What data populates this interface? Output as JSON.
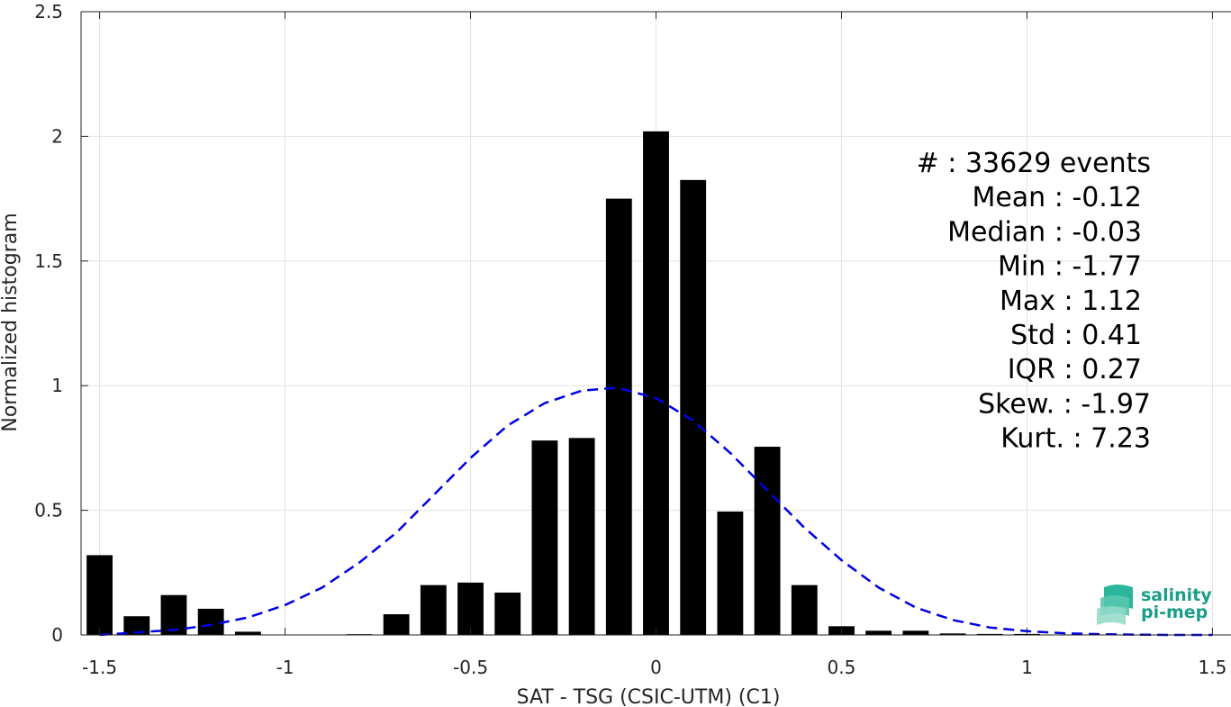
{
  "chart_data": {
    "type": "bar",
    "xlabel": "SAT - TSG (CSIC-UTM) (C1)",
    "ylabel": "Normalized histogram",
    "xlim": [
      -1.55,
      1.55
    ],
    "ylim": [
      0,
      2.5
    ],
    "x_ticks": [
      -1.5,
      -1,
      -0.5,
      0,
      0.5,
      1,
      1.5
    ],
    "x_tick_labels": [
      "-1.5",
      "-1",
      "-0.5",
      "0",
      "0.5",
      "1",
      "1.5"
    ],
    "y_ticks": [
      0,
      0.5,
      1,
      1.5,
      2,
      2.5
    ],
    "y_tick_labels": [
      "0",
      "0.5",
      "1",
      "1.5",
      "2",
      "2.5"
    ],
    "grid": true,
    "bar_color": "#000000",
    "bar_width": 0.07,
    "bars": {
      "x": [
        -1.5,
        -1.4,
        -1.3,
        -1.2,
        -1.1,
        -1.0,
        -0.9,
        -0.8,
        -0.7,
        -0.6,
        -0.5,
        -0.4,
        -0.3,
        -0.2,
        -0.1,
        0.0,
        0.1,
        0.2,
        0.3,
        0.4,
        0.5,
        0.6,
        0.7,
        0.8,
        0.9,
        1.0,
        1.1,
        1.2,
        1.3,
        1.4,
        1.5
      ],
      "y": [
        0.32,
        0.075,
        0.16,
        0.105,
        0.013,
        0.0,
        0.0,
        0.003,
        0.083,
        0.2,
        0.21,
        0.17,
        0.78,
        0.79,
        1.75,
        2.02,
        1.825,
        0.495,
        0.755,
        0.2,
        0.035,
        0.017,
        0.017,
        0.006,
        0.004,
        0.004,
        0.0,
        0.0,
        0.0,
        0.0,
        0.0
      ]
    },
    "fit_curve": {
      "color": "#0000e6",
      "style": "dashed",
      "x": [
        -1.5,
        -1.4,
        -1.3,
        -1.2,
        -1.1,
        -1.0,
        -0.9,
        -0.8,
        -0.7,
        -0.6,
        -0.5,
        -0.4,
        -0.3,
        -0.2,
        -0.12,
        -0.1,
        0.0,
        0.1,
        0.2,
        0.3,
        0.4,
        0.5,
        0.6,
        0.7,
        0.8,
        0.9,
        1.0,
        1.1,
        1.2,
        1.3,
        1.4,
        1.5
      ],
      "y": [
        0.0,
        0.01,
        0.02,
        0.04,
        0.07,
        0.12,
        0.19,
        0.29,
        0.41,
        0.56,
        0.71,
        0.84,
        0.93,
        0.98,
        0.99,
        0.99,
        0.95,
        0.86,
        0.73,
        0.58,
        0.43,
        0.3,
        0.19,
        0.11,
        0.06,
        0.03,
        0.015,
        0.007,
        0.003,
        0.001,
        0.0,
        0.0
      ]
    },
    "stats": [
      {
        "label": "#",
        "sep": " : ",
        "value": "33629 events"
      },
      {
        "label": "Mean",
        "sep": " : ",
        "value": "-0.12"
      },
      {
        "label": "Median",
        "sep": " : ",
        "value": "-0.03"
      },
      {
        "label": "Min",
        "sep": " : ",
        "value": "-1.77"
      },
      {
        "label": "Max",
        "sep": " : ",
        "value": "1.12"
      },
      {
        "label": "Std",
        "sep": " : ",
        "value": "0.41"
      },
      {
        "label": "IQR",
        "sep": " : ",
        "value": "0.27"
      },
      {
        "label": "Skew.",
        "sep": " : ",
        "value": "-1.97"
      },
      {
        "label": "Kurt.",
        "sep": " : ",
        "value": "7.23"
      }
    ]
  },
  "logo": {
    "line1": "salinity",
    "line2": "pi-mep",
    "color": "#1a9e8a"
  }
}
